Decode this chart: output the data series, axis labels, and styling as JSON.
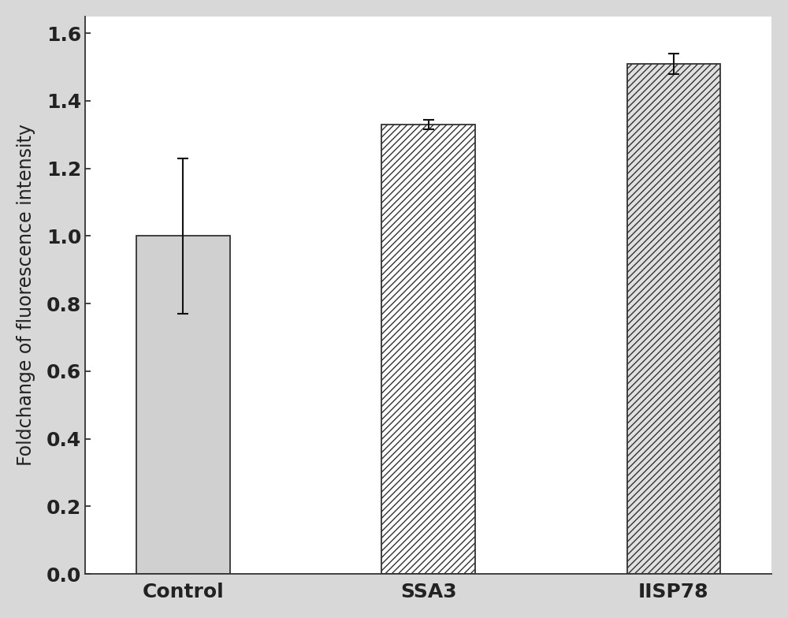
{
  "categories": [
    "Control",
    "SSA3",
    "IISP78"
  ],
  "values": [
    1.0,
    1.33,
    1.51
  ],
  "errors": [
    0.23,
    0.015,
    0.03
  ],
  "bar_colors": [
    "#d0d0d0",
    "#ffffff",
    "#e0e0e0"
  ],
  "hatch_patterns": [
    "",
    "////",
    "////"
  ],
  "hatch_colors": [
    "#888888",
    "#888888",
    "#888888"
  ],
  "ylabel": "Foldchange of fluorescence intensity",
  "ylim": [
    0,
    1.65
  ],
  "yticks": [
    0.0,
    0.2,
    0.4,
    0.6,
    0.8,
    1.0,
    1.2,
    1.4,
    1.6
  ],
  "bar_width": 0.38,
  "edge_color": "#333333",
  "error_color": "#111111",
  "tick_label_fontsize": 18,
  "ylabel_fontsize": 17,
  "background_color": "#ffffff",
  "figure_facecolor": "#d8d8d8",
  "spine_color": "#333333",
  "bar_positions": [
    0.25,
    0.5,
    0.75
  ]
}
